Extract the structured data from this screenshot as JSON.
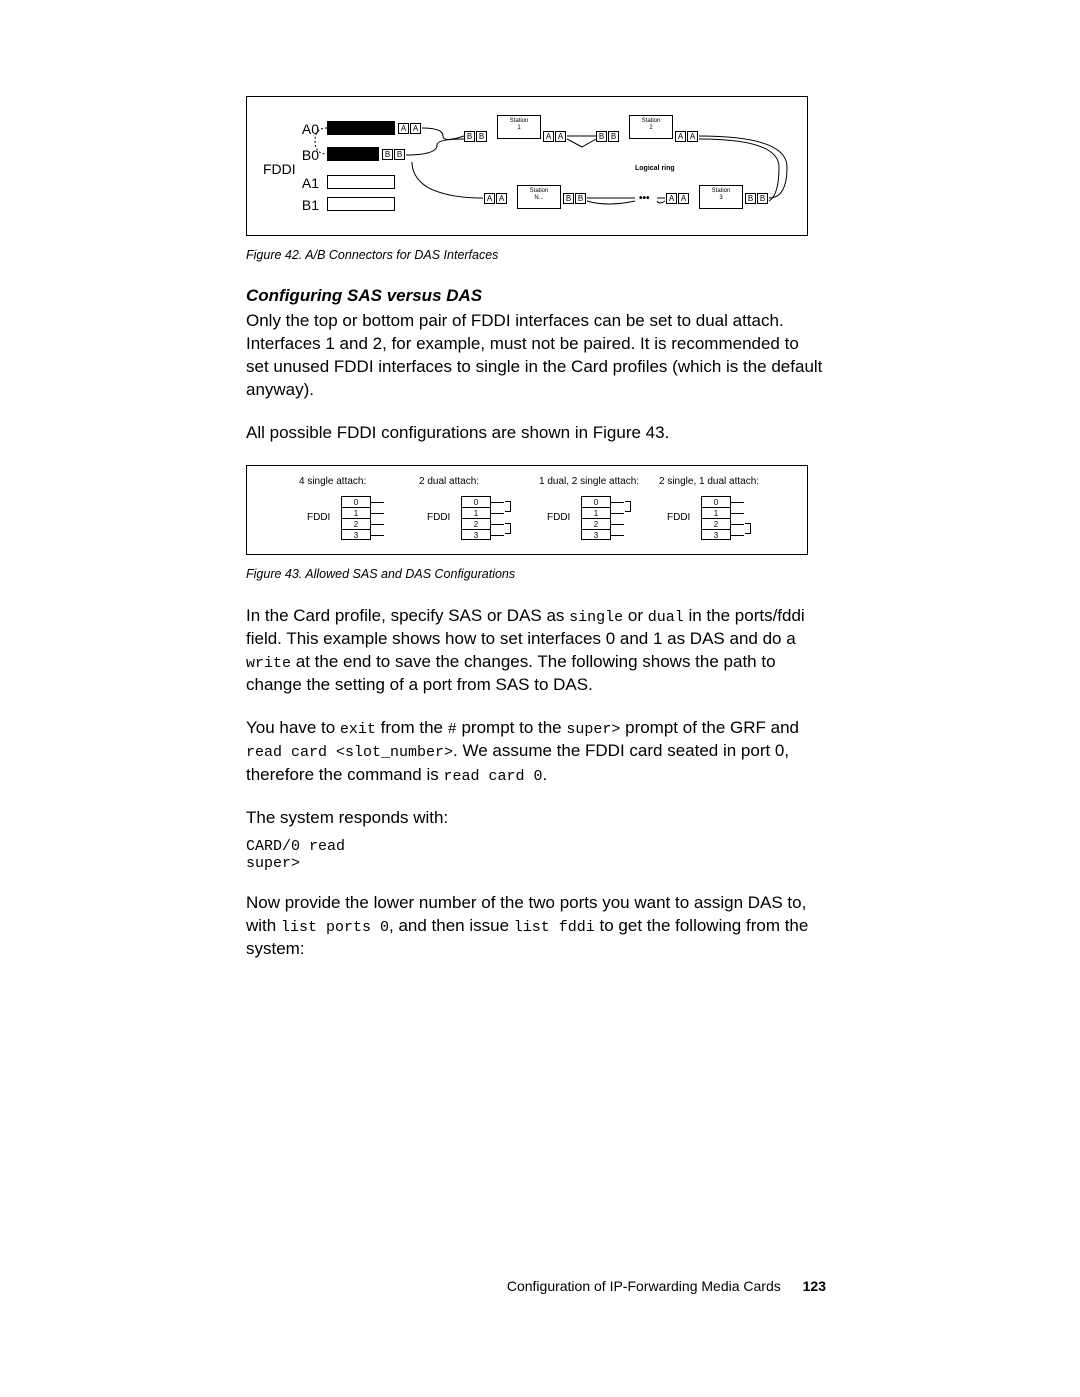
{
  "fig42": {
    "caption": "Figure 42.  A/B Connectors for DAS Interfaces",
    "fddi_label": "FDDI",
    "ports": [
      "A0",
      "B0",
      "A1",
      "B1"
    ],
    "logical_ring": "Logical ring",
    "station_labels": [
      "Station\n1",
      "Station\n2",
      "Station\n3",
      "Station\nN..."
    ],
    "ab_labels": {
      "A": "A",
      "B": "B"
    }
  },
  "section_heading": "Configuring SAS versus DAS",
  "para1": "Only the top or bottom pair of FDDI interfaces can be set to dual attach. Interfaces 1 and 2, for example, must not be paired. It is recommended to set unused FDDI interfaces to single in the Card profiles (which is the default anyway).",
  "para2": "All possible FDDI configurations are shown in Figure 43.",
  "fig43": {
    "caption": "Figure 43.  Allowed SAS and DAS Configurations",
    "configs": [
      {
        "label": "4 single attach:",
        "fddi": "FDDI",
        "rows": [
          "0",
          "1",
          "2",
          "3"
        ],
        "left_wires": [],
        "right_wires": [
          0,
          1,
          2,
          3
        ],
        "brackets": []
      },
      {
        "label": "2 dual attach:",
        "fddi": "FDDI",
        "rows": [
          "0",
          "1",
          "2",
          "3"
        ],
        "left_wires": [],
        "right_wires": [
          0,
          1,
          2,
          3
        ],
        "brackets": [
          [
            0,
            1
          ],
          [
            2,
            3
          ]
        ]
      },
      {
        "label": "1 dual, 2 single attach:",
        "fddi": "FDDI",
        "rows": [
          "0",
          "1",
          "2",
          "3"
        ],
        "left_wires": [],
        "right_wires": [
          0,
          1,
          2,
          3
        ],
        "brackets": [
          [
            0,
            1
          ]
        ]
      },
      {
        "label": "2 single, 1 dual attach:",
        "fddi": "FDDI",
        "rows": [
          "0",
          "1",
          "2",
          "3"
        ],
        "left_wires": [],
        "right_wires": [
          0,
          1,
          2,
          3
        ],
        "brackets": [
          [
            2,
            3
          ]
        ]
      }
    ]
  },
  "para3_pre": "In the Card profile, specify SAS or DAS as ",
  "para3_code1": "single",
  "para3_mid1": " or ",
  "para3_code2": "dual",
  "para3_mid2": " in the ports/fddi field. This example shows how to set interfaces 0 and 1 as DAS and do a ",
  "para3_code3": "write",
  "para3_post": " at the end to save the changes. The following shows the path to change the setting of a port from SAS to DAS.",
  "para4_pre": "You have to ",
  "para4_code1": "exit",
  "para4_mid1": " from the ",
  "para4_code2": "#",
  "para4_mid2": " prompt to the ",
  "para4_code3": "super>",
  "para4_mid3": " prompt of the GRF and ",
  "para4_code4": "read card <slot_number>",
  "para4_mid4": ". We assume the FDDI card seated in port 0, therefore the command is ",
  "para4_code5": "read card 0",
  "para4_post": ".",
  "para5": "The system responds with:",
  "codeblock1": "CARD/0 read\nsuper>",
  "para6_pre": "Now provide the lower number of the two ports you want to assign DAS to, with ",
  "para6_code1": "list ports 0",
  "para6_mid1": ", and then issue ",
  "para6_code2": "list fddi",
  "para6_post": " to get the following from the system:",
  "footer_text": "Configuration of IP-Forwarding Media Cards",
  "footer_page": "123"
}
